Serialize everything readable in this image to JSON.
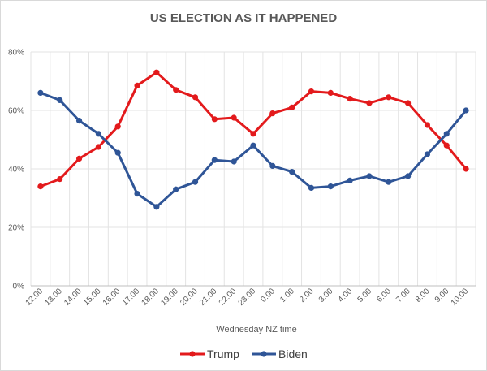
{
  "chart_data": {
    "type": "line",
    "title": "US ELECTION AS IT HAPPENED",
    "xlabel": "Wednesday NZ time",
    "ylabel": "",
    "ylim": [
      0,
      80
    ],
    "y_ticks": [
      "0%",
      "20%",
      "40%",
      "60%",
      "80%"
    ],
    "grid": "both",
    "legend_position": "bottom",
    "categories": [
      "12:00",
      "13:00",
      "14:00",
      "15:00",
      "16:00",
      "17:00",
      "18:00",
      "19:00",
      "20:00",
      "21:00",
      "22:00",
      "23:00",
      "0:00",
      "1:00",
      "2:00",
      "3:00",
      "4:00",
      "5:00",
      "6:00",
      "7:00",
      "8:00",
      "9:00",
      "10:00"
    ],
    "series": [
      {
        "name": "Trump",
        "color": "#e31a1c",
        "values": [
          34,
          36.5,
          43.5,
          47.5,
          54.5,
          68.5,
          73,
          67,
          64.5,
          57,
          57.5,
          52,
          59,
          61,
          66.5,
          66,
          64,
          62.5,
          64.5,
          62.5,
          55,
          48,
          40
        ]
      },
      {
        "name": "Biden",
        "color": "#2f5597",
        "values": [
          66,
          63.5,
          56.5,
          52,
          45.5,
          31.5,
          27,
          33,
          35.5,
          43,
          42.5,
          48,
          41,
          39,
          33.5,
          34,
          36,
          37.5,
          35.5,
          37.5,
          45,
          52,
          60
        ]
      }
    ]
  }
}
